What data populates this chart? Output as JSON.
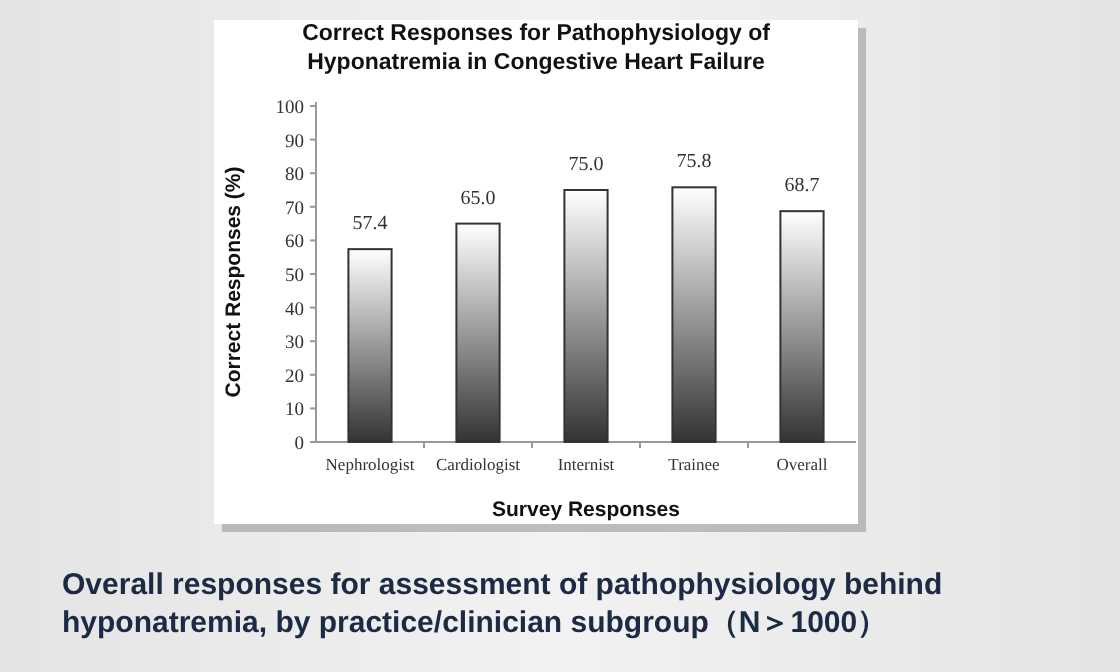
{
  "chart_data": {
    "type": "bar",
    "title": "Correct Responses for Pathophysiology of Hyponatremia in Congestive Heart Failure",
    "xlabel": "Survey Responses",
    "ylabel": "Correct Responses (%)",
    "categories": [
      "Nephrologist",
      "Cardiologist",
      "Internist",
      "Trainee",
      "Overall"
    ],
    "values": [
      57.4,
      65.0,
      75.0,
      75.8,
      68.7
    ],
    "value_labels": [
      "57.4",
      "65.0",
      "75.0",
      "75.8",
      "68.7"
    ],
    "color": "#333333",
    "ylim": [
      0,
      100
    ],
    "yticks": [
      0,
      10,
      20,
      30,
      40,
      50,
      60,
      70,
      80,
      90,
      100
    ],
    "annotations": [
      "Overall responses for assessment of pathophysiology behind hyponatremia, by practice/clinician subgroup（N＞1000）"
    ]
  }
}
